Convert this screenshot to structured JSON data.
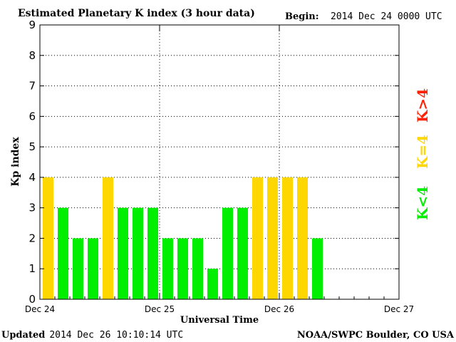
{
  "chart_data": {
    "type": "bar",
    "title": "Estimated Planetary K index (3 hour data)",
    "begin_label": "Begin:",
    "begin_value": "2014 Dec 24 0000 UTC",
    "xlabel": "Universal Time",
    "ylabel": "Kp index",
    "ylim": [
      0,
      9
    ],
    "yticks": [
      "0",
      "1",
      "2",
      "3",
      "4",
      "5",
      "6",
      "7",
      "8",
      "9"
    ],
    "xticks": [
      "Dec 24",
      "Dec 25",
      "Dec 26",
      "Dec 27"
    ],
    "interval_hours": 3,
    "bins_total": 24,
    "values": [
      4,
      3,
      2,
      2,
      4,
      3,
      3,
      3,
      2,
      2,
      2,
      1,
      3,
      3,
      4,
      4,
      4,
      4,
      2
    ],
    "grid": true,
    "legend": [
      {
        "label": "K<4",
        "color": "#00ee00"
      },
      {
        "label": "K=4",
        "color": "#ffd700"
      },
      {
        "label": "K>4",
        "color": "#ff2200"
      }
    ],
    "colors": {
      "below": "#00ee00",
      "equal": "#ffd700",
      "above": "#ff2200"
    }
  },
  "footer": {
    "updated_label": "Updated",
    "updated_value": "2014 Dec 26 10:10:14 UTC",
    "credit": "NOAA/SWPC Boulder, CO USA"
  }
}
